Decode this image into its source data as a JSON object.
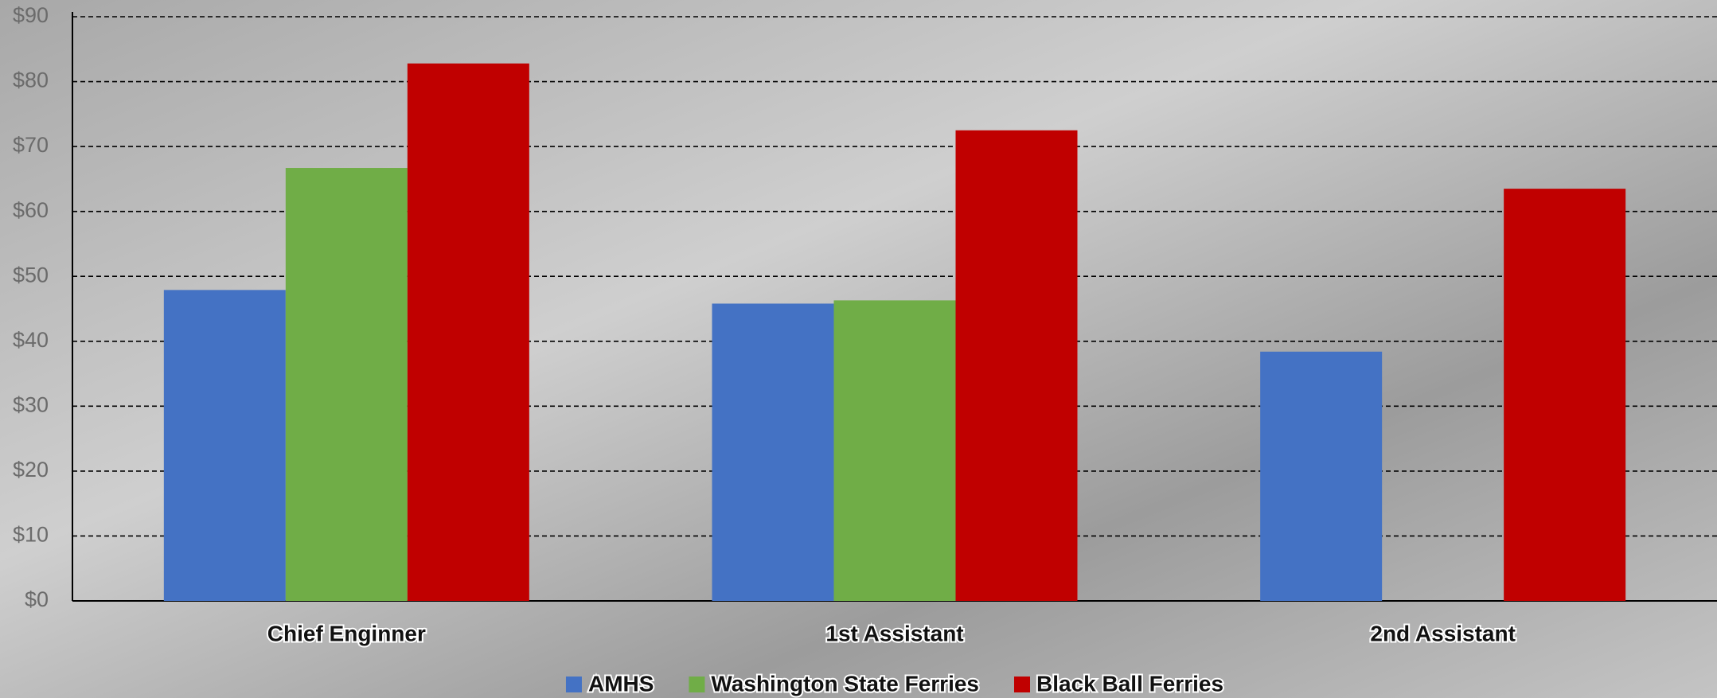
{
  "chart_data": {
    "type": "bar",
    "categories": [
      "Chief Enginner",
      "1st Assistant",
      "2nd Assistant"
    ],
    "series": [
      {
        "name": "AMHS",
        "color": "#4472c4",
        "values": [
          47.9,
          45.8,
          38.4
        ]
      },
      {
        "name": "Washington State Ferries",
        "color": "#70ad47",
        "values": [
          66.7,
          46.3,
          null
        ]
      },
      {
        "name": "Black Ball Ferries",
        "color": "#c00000",
        "values": [
          82.8,
          72.5,
          63.5
        ]
      }
    ],
    "ylim": [
      0,
      90
    ],
    "yticks": [
      {
        "value": 0,
        "label": "$0"
      },
      {
        "value": 10,
        "label": "$10"
      },
      {
        "value": 20,
        "label": "$20"
      },
      {
        "value": 30,
        "label": "$30"
      },
      {
        "value": 40,
        "label": "$40"
      },
      {
        "value": 50,
        "label": "$50"
      },
      {
        "value": 60,
        "label": "$60"
      },
      {
        "value": 70,
        "label": "$70"
      },
      {
        "value": 80,
        "label": "$80"
      },
      {
        "value": 90,
        "label": "$90"
      }
    ],
    "grid": true,
    "legend": "bottom"
  }
}
